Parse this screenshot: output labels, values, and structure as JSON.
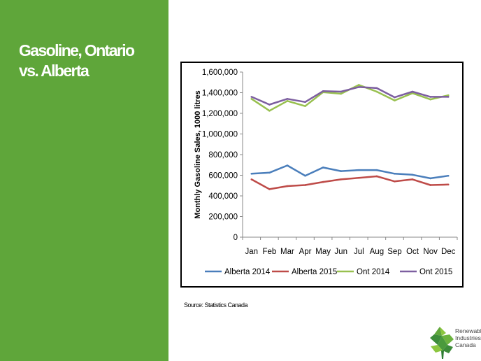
{
  "slide": {
    "title_line1": "Gasoline, Ontario",
    "title_line2": "vs. Alberta",
    "source": "Source: Statistics Canada"
  },
  "logo": {
    "line1": "Renewable",
    "line2": "Industries",
    "line3": "Canada"
  },
  "colors": {
    "sidebar": "#5fa63a",
    "alberta2014": "#4a7ebb",
    "alberta2015": "#be4b48",
    "ont2014": "#98c04f",
    "ont2015": "#7d5fa0"
  },
  "chart_data": {
    "type": "line",
    "ylabel": "Monthly Gasoline Sales, 1000 litres",
    "ylim": [
      0,
      1600000
    ],
    "yticks": [
      "0",
      "200,000",
      "400,000",
      "600,000",
      "800,000",
      "1,000,000",
      "1,200,000",
      "1,400,000",
      "1,600,000"
    ],
    "categories": [
      "Jan",
      "Feb",
      "Mar",
      "Apr",
      "May",
      "Jun",
      "Jul",
      "Aug",
      "Sep",
      "Oct",
      "Nov",
      "Dec"
    ],
    "legend_position": "bottom",
    "series": [
      {
        "name": "Alberta 2014",
        "color": "#4a7ebb",
        "values": [
          615000,
          625000,
          695000,
          595000,
          675000,
          640000,
          650000,
          650000,
          615000,
          605000,
          570000,
          595000
        ]
      },
      {
        "name": "Alberta 2015",
        "color": "#be4b48",
        "values": [
          560000,
          465000,
          495000,
          505000,
          535000,
          560000,
          575000,
          590000,
          540000,
          560000,
          505000,
          510000
        ]
      },
      {
        "name": "Ont 2014",
        "color": "#98c04f",
        "values": [
          1340000,
          1225000,
          1320000,
          1270000,
          1405000,
          1390000,
          1475000,
          1410000,
          1325000,
          1395000,
          1335000,
          1375000
        ]
      },
      {
        "name": "Ont 2015",
        "color": "#7d5fa0",
        "values": [
          1360000,
          1285000,
          1340000,
          1310000,
          1415000,
          1410000,
          1455000,
          1445000,
          1355000,
          1410000,
          1360000,
          1360000
        ]
      }
    ]
  }
}
